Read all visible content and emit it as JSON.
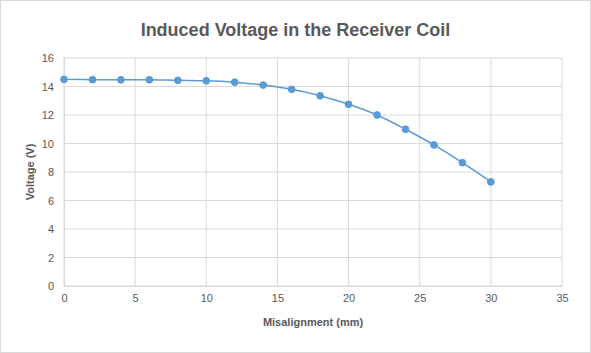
{
  "chart_data": {
    "type": "line",
    "title": "Induced Voltage in the Receiver Coil",
    "x_label": "Misalignment (mm)",
    "y_label": "Voltage (V)",
    "x": [
      0,
      2,
      4,
      6,
      8,
      10,
      12,
      14,
      16,
      18,
      20,
      22,
      24,
      26,
      28,
      30
    ],
    "values": [
      14.5,
      14.48,
      14.47,
      14.47,
      14.43,
      14.4,
      14.3,
      14.1,
      13.8,
      13.35,
      12.75,
      12.0,
      11.0,
      9.9,
      8.65,
      7.3
    ],
    "color": "#5b9bd5",
    "marker": "circle",
    "line_style": "solid",
    "xlim": [
      0,
      35
    ],
    "xticks": [
      0,
      5,
      10,
      15,
      20,
      25,
      30,
      35
    ],
    "ylim": [
      0,
      16
    ],
    "yticks": [
      0,
      2,
      4,
      6,
      8,
      10,
      12,
      14,
      16
    ],
    "grid": true
  }
}
